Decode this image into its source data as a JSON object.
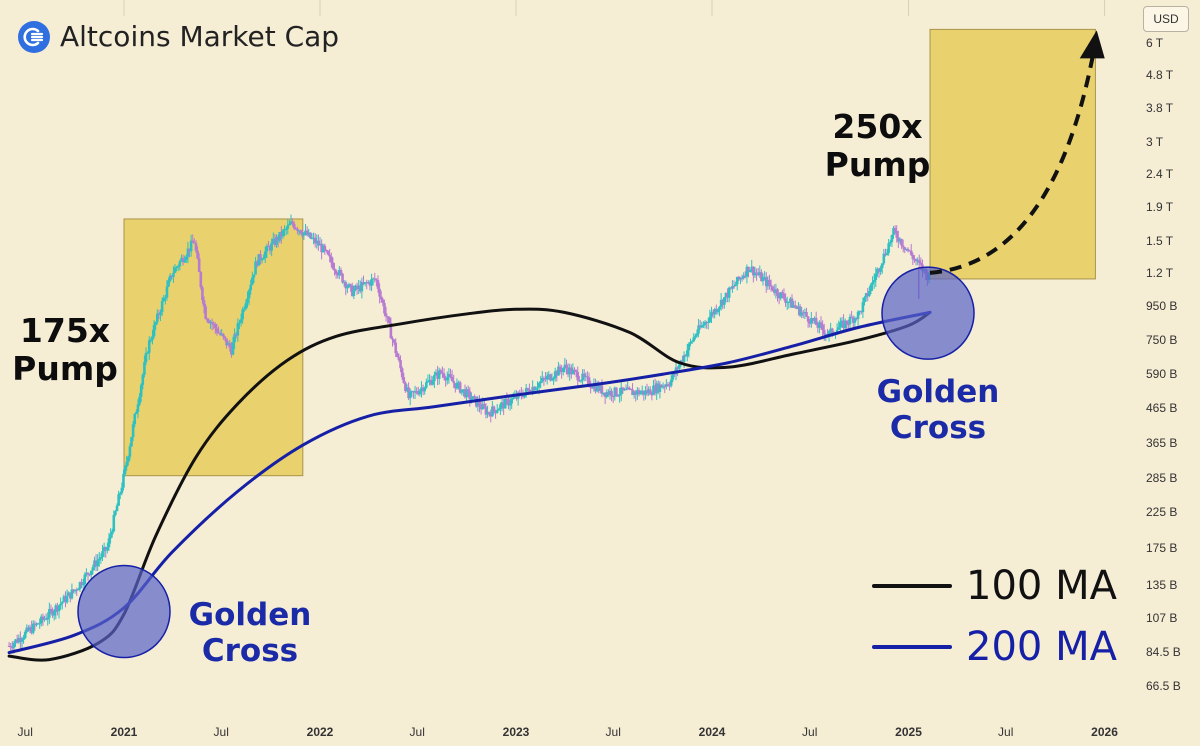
{
  "header": {
    "title": "Altcoins Market Cap",
    "logo_icon": "lunarcrush-logo-icon",
    "currency_button": "USD"
  },
  "annotations": {
    "pump_1": [
      "175x",
      "Pump"
    ],
    "pump_2": [
      "250x",
      "Pump"
    ],
    "golden_cross_1": [
      "Golden",
      "Cross"
    ],
    "golden_cross_2": [
      "Golden",
      "Cross"
    ]
  },
  "legend": {
    "ma100_label": "100 MA",
    "ma200_label": "200 MA"
  },
  "colors": {
    "background": "#f6edd5",
    "candle_up": "#2fc0c2",
    "candle_down": "#b77bd2",
    "ma100": "#111111",
    "ma200": "#1520a6",
    "highlight_box": "#e6cd5c",
    "circle": "#5862c8",
    "annotation_blue": "#1b2aa6"
  },
  "chart_data": {
    "type": "candlestick",
    "title": "Altcoins Market Cap",
    "y_scale": "log",
    "y_unit": "USD",
    "y_ticks": [
      "6 T",
      "4.8 T",
      "3.8 T",
      "3 T",
      "2.4 T",
      "1.9 T",
      "1.5 T",
      "1.2 T",
      "950 B",
      "750 B",
      "590 B",
      "465 B",
      "365 B",
      "285 B",
      "225 B",
      "175 B",
      "135 B",
      "107 B",
      "84.5 B",
      "66.5 B"
    ],
    "x_ticks": [
      "Jul",
      "2021",
      "Jul",
      "2022",
      "Jul",
      "2023",
      "Jul",
      "2024",
      "Jul",
      "2025",
      "Jul",
      "2026"
    ],
    "price_path": [
      {
        "date": "2020-06-01",
        "close_b": 88
      },
      {
        "date": "2020-08-01",
        "close_b": 105
      },
      {
        "date": "2020-10-01",
        "close_b": 130
      },
      {
        "date": "2020-12-01",
        "close_b": 175
      },
      {
        "date": "2021-01-01",
        "close_b": 290
      },
      {
        "date": "2021-02-15",
        "close_b": 720
      },
      {
        "date": "2021-04-01",
        "close_b": 1200
      },
      {
        "date": "2021-05-12",
        "close_b": 1500
      },
      {
        "date": "2021-06-01",
        "close_b": 900
      },
      {
        "date": "2021-07-20",
        "close_b": 700
      },
      {
        "date": "2021-09-05",
        "close_b": 1300
      },
      {
        "date": "2021-11-10",
        "close_b": 1700
      },
      {
        "date": "2022-01-01",
        "close_b": 1450
      },
      {
        "date": "2022-03-01",
        "close_b": 1050
      },
      {
        "date": "2022-04-15",
        "close_b": 1150
      },
      {
        "date": "2022-06-15",
        "close_b": 500
      },
      {
        "date": "2022-08-15",
        "close_b": 600
      },
      {
        "date": "2022-11-10",
        "close_b": 450
      },
      {
        "date": "2023-01-01",
        "close_b": 500
      },
      {
        "date": "2023-04-01",
        "close_b": 620
      },
      {
        "date": "2023-06-15",
        "close_b": 520
      },
      {
        "date": "2023-09-01",
        "close_b": 520
      },
      {
        "date": "2023-10-15",
        "close_b": 560
      },
      {
        "date": "2023-12-01",
        "close_b": 780
      },
      {
        "date": "2024-03-10",
        "close_b": 1250
      },
      {
        "date": "2024-05-01",
        "close_b": 1050
      },
      {
        "date": "2024-08-05",
        "close_b": 780
      },
      {
        "date": "2024-10-01",
        "close_b": 900
      },
      {
        "date": "2024-12-05",
        "close_b": 1600
      },
      {
        "date": "2025-01-15",
        "close_b": 1300
      },
      {
        "date": "2025-02-10",
        "close_b": 1150
      }
    ],
    "series": [
      {
        "name": "100 MA",
        "points": [
          {
            "date": "2020-06-01",
            "value_b": 82
          },
          {
            "date": "2020-08-15",
            "value_b": 80
          },
          {
            "date": "2020-11-15",
            "value_b": 90
          },
          {
            "date": "2021-01-01",
            "value_b": 110
          },
          {
            "date": "2021-03-01",
            "value_b": 190
          },
          {
            "date": "2021-05-15",
            "value_b": 330
          },
          {
            "date": "2021-08-01",
            "value_b": 480
          },
          {
            "date": "2021-11-01",
            "value_b": 650
          },
          {
            "date": "2022-02-01",
            "value_b": 770
          },
          {
            "date": "2022-06-01",
            "value_b": 840
          },
          {
            "date": "2022-10-01",
            "value_b": 900
          },
          {
            "date": "2023-01-01",
            "value_b": 930
          },
          {
            "date": "2023-04-01",
            "value_b": 910
          },
          {
            "date": "2023-08-01",
            "value_b": 790
          },
          {
            "date": "2023-11-01",
            "value_b": 640
          },
          {
            "date": "2024-02-01",
            "value_b": 620
          },
          {
            "date": "2024-06-01",
            "value_b": 680
          },
          {
            "date": "2024-10-01",
            "value_b": 750
          },
          {
            "date": "2025-01-01",
            "value_b": 830
          },
          {
            "date": "2025-02-10",
            "value_b": 910
          }
        ]
      },
      {
        "name": "200 MA",
        "points": [
          {
            "date": "2020-06-01",
            "value_b": 84
          },
          {
            "date": "2020-10-01",
            "value_b": 95
          },
          {
            "date": "2021-01-01",
            "value_b": 115
          },
          {
            "date": "2021-04-01",
            "value_b": 170
          },
          {
            "date": "2021-08-01",
            "value_b": 260
          },
          {
            "date": "2021-12-01",
            "value_b": 360
          },
          {
            "date": "2022-04-01",
            "value_b": 440
          },
          {
            "date": "2022-08-01",
            "value_b": 470
          },
          {
            "date": "2023-01-01",
            "value_b": 510
          },
          {
            "date": "2023-06-01",
            "value_b": 550
          },
          {
            "date": "2023-10-01",
            "value_b": 590
          },
          {
            "date": "2024-02-01",
            "value_b": 640
          },
          {
            "date": "2024-06-01",
            "value_b": 720
          },
          {
            "date": "2024-10-01",
            "value_b": 820
          },
          {
            "date": "2025-02-10",
            "value_b": 910
          }
        ]
      }
    ],
    "highlight_ranges": [
      {
        "label": "175x Pump",
        "from": "2021-01-01",
        "to": "2021-11-30",
        "low_b": 290,
        "high_b": 1750
      },
      {
        "label": "250x Pump",
        "from": "2025-02-10",
        "to": "2025-12-15",
        "low_b": 1150,
        "high_b": 6600
      }
    ],
    "golden_crosses": [
      {
        "date": "2021-01-01",
        "value_b": 112
      },
      {
        "date": "2025-02-10",
        "value_b": 905
      }
    ],
    "projection": {
      "from": {
        "date": "2025-02-10",
        "value_b": 1200
      },
      "to": {
        "date": "2025-12-10",
        "value_b": 6200
      },
      "style": "dashed-arrow"
    }
  }
}
